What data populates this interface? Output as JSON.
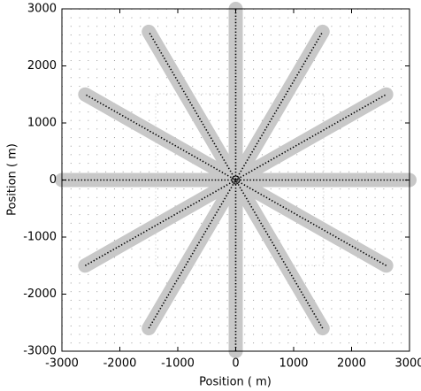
{
  "chart_data": {
    "type": "line",
    "xlabel": "Position ( m)",
    "ylabel": "Position ( m)",
    "xlim": [
      -3000,
      3000
    ],
    "ylim": [
      -3000,
      3000
    ],
    "xticks": [
      -3000,
      -2000,
      -1000,
      0,
      1000,
      2000,
      3000
    ],
    "yticks": [
      -3000,
      -2000,
      -1000,
      0,
      1000,
      2000,
      3000
    ],
    "grid": "dots",
    "series": [
      {
        "color": "#000000",
        "x": [
          -3000,
          3000
        ],
        "y": [
          0,
          0
        ]
      },
      {
        "color": "#000000",
        "x": [
          -2598,
          2598
        ],
        "y": [
          -1500,
          1500
        ]
      },
      {
        "color": "#000000",
        "x": [
          -1500,
          1500
        ],
        "y": [
          -2598,
          2598
        ]
      },
      {
        "color": "#000000",
        "x": [
          0,
          0
        ],
        "y": [
          -3000,
          3000
        ]
      },
      {
        "color": "#000000",
        "x": [
          1500,
          -1500
        ],
        "y": [
          -2598,
          2598
        ]
      },
      {
        "color": "#000000",
        "x": [
          2598,
          -2598
        ],
        "y": [
          -1500,
          1500
        ]
      }
    ]
  }
}
